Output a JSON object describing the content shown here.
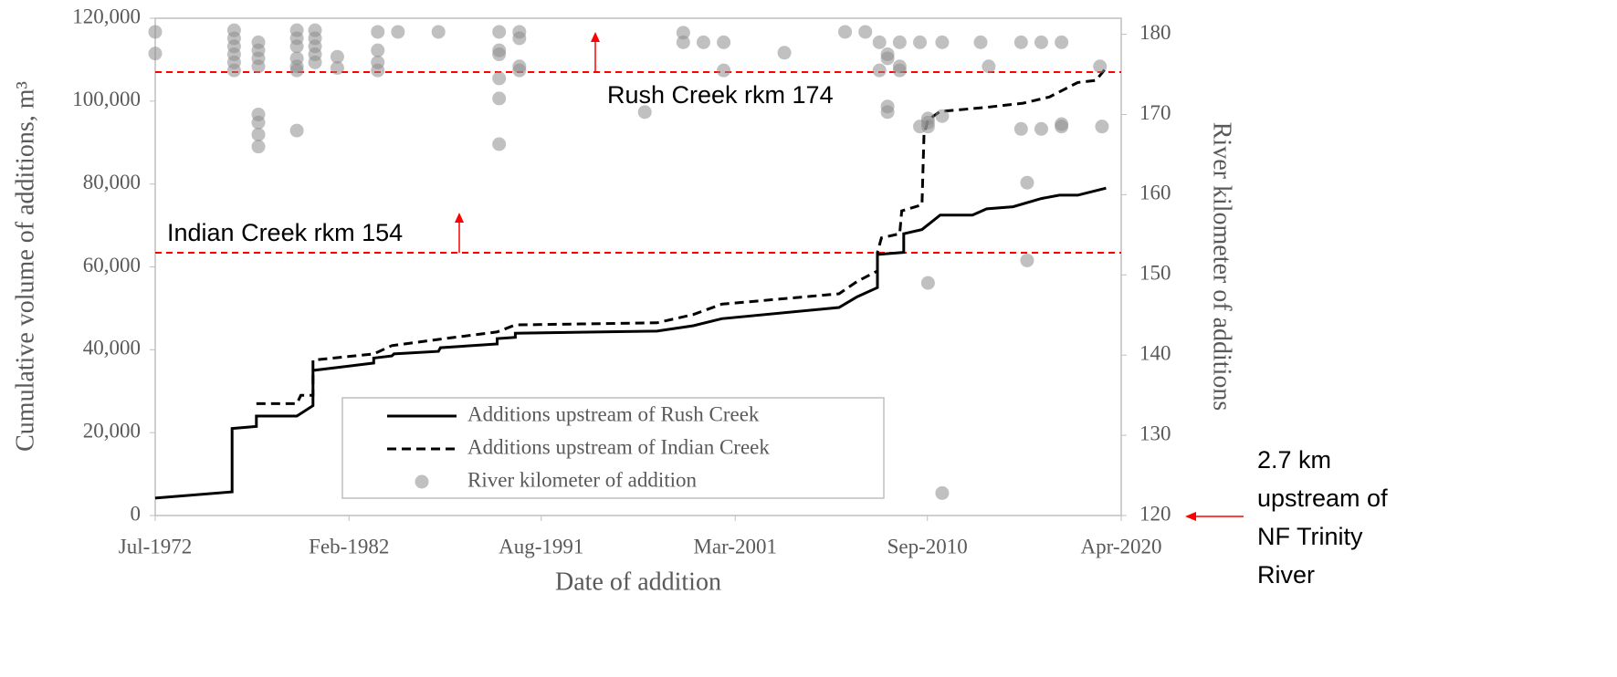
{
  "chart_data": {
    "type": "line",
    "x_label": "Date of addition",
    "y_label": "Cumulative volume of additions, m³",
    "y2_label": "River kilometer of additions",
    "xlim": [
      1972.5,
      2020.25
    ],
    "xticks": [
      {
        "value": 1972.5,
        "label": "Jul-1972"
      },
      {
        "value": 1982.08,
        "label": "Feb-1982"
      },
      {
        "value": 1991.58,
        "label": "Aug-1991"
      },
      {
        "value": 2001.17,
        "label": "Mar-2001"
      },
      {
        "value": 2010.67,
        "label": "Sep-2010"
      },
      {
        "value": 2020.25,
        "label": "Apr-2020"
      }
    ],
    "ylim": [
      0,
      120000
    ],
    "yticks": [
      0,
      {
        "value": 20000,
        "label": "20,000"
      },
      {
        "value": 40000,
        "label": "40,000"
      },
      {
        "value": 60000,
        "label": "60,000"
      },
      {
        "value": 80000,
        "label": "80,000"
      },
      {
        "value": 100000,
        "label": "100,000"
      },
      {
        "value": 120000,
        "label": "120,000"
      }
    ],
    "y2lim": [
      120,
      182
    ],
    "y2ticks": [
      120,
      130,
      140,
      150,
      160,
      170,
      180
    ],
    "series": [
      {
        "name": "Additions upstream of Rush Creek",
        "type": "line",
        "style": "solid",
        "color": "#000000",
        "x": [
          1972.5,
          1976.3,
          1976.3,
          1977.5,
          1977.5,
          1979.5,
          1980.3,
          1980.3,
          1983.3,
          1983.3,
          1984.2,
          1984.3,
          1986.5,
          1986.6,
          1989.4,
          1989.4,
          1990.3,
          1990.3,
          1997.3,
          1999.1,
          2000.5,
          2006.3,
          2007.2,
          2008.2,
          2008.2,
          2009.5,
          2009.5,
          2010.4,
          2011.3,
          2012.9,
          2013.6,
          2014.9,
          2016.3,
          2017.2,
          2018.1,
          2019.5
        ],
        "values": [
          4200,
          5700,
          21000,
          21500,
          24000,
          24000,
          26500,
          35000,
          36800,
          38000,
          38500,
          39000,
          39600,
          40500,
          41400,
          42700,
          43000,
          44000,
          44500,
          45800,
          47500,
          50200,
          52800,
          55000,
          63000,
          63500,
          68000,
          69000,
          72500,
          72500,
          74000,
          74500,
          76500,
          77300,
          77300,
          79000
        ]
      },
      {
        "name": "Additions upstream of Indian Creek",
        "type": "line",
        "style": "dashed",
        "color": "#000000",
        "x": [
          1977.5,
          1979.5,
          1979.7,
          1980.3,
          1980.3,
          1983.3,
          1984.2,
          1986.5,
          1989.4,
          1990.3,
          1997.3,
          1999.1,
          2000.5,
          2006.3,
          2007.2,
          2008.2,
          2008.2,
          2008.4,
          2009.3,
          2009.4,
          2010.4,
          2010.5,
          2010.7,
          2011.3,
          2013.6,
          2015.4,
          2016.7,
          2018.1,
          2019.0,
          2019.5
        ],
        "values": [
          27000,
          27000,
          29000,
          29000,
          37500,
          39000,
          41000,
          42500,
          44300,
          46000,
          46500,
          48500,
          51000,
          53500,
          56500,
          59000,
          63500,
          67000,
          68000,
          73500,
          75000,
          92000,
          95500,
          97500,
          98500,
          99500,
          101000,
          104500,
          105000,
          108000
        ]
      },
      {
        "name": "River kilometer of addition",
        "type": "scatter",
        "axis": "y2",
        "color": "#8c8c8c",
        "x": [
          1972.5,
          1972.5,
          1976.4,
          1976.4,
          1976.4,
          1976.4,
          1976.4,
          1976.4,
          1977.6,
          1977.6,
          1977.6,
          1977.6,
          1977.6,
          1977.6,
          1977.6,
          1977.6,
          1979.5,
          1979.5,
          1979.5,
          1979.5,
          1979.5,
          1979.5,
          1979.5,
          1980.4,
          1980.4,
          1980.4,
          1980.4,
          1980.4,
          1981.5,
          1981.5,
          1983.5,
          1983.5,
          1983.5,
          1983.5,
          1984.5,
          1986.5,
          1989.5,
          1989.5,
          1989.5,
          1989.5,
          1989.5,
          1989.5,
          1990.5,
          1990.5,
          1990.5,
          1990.5,
          1996.7,
          1998.6,
          1998.6,
          1999.6,
          2000.6,
          2000.6,
          2003.6,
          2006.6,
          2007.6,
          2008.3,
          2008.3,
          2008.7,
          2008.7,
          2008.7,
          2008.7,
          2009.3,
          2009.3,
          2009.3,
          2010.3,
          2010.3,
          2010.7,
          2010.7,
          2010.7,
          2010.7,
          2011.4,
          2011.4,
          2011.4,
          2013.3,
          2013.7,
          2015.3,
          2015.3,
          2015.6,
          2015.6,
          2016.3,
          2016.3,
          2017.3,
          2017.3,
          2017.3,
          2019.2,
          2019.3
        ],
        "values": [
          180.3,
          177.6,
          180.5,
          179.5,
          178.5,
          177.5,
          176.5,
          175.5,
          179,
          178,
          177,
          176,
          170,
          169,
          167.5,
          166,
          168,
          180.5,
          179.5,
          178.5,
          177,
          176,
          175.5,
          180.5,
          179.5,
          178.5,
          177.5,
          176.5,
          177.2,
          175.8,
          180.3,
          178,
          176.5,
          175.5,
          180.3,
          180.3,
          180.3,
          178,
          177.5,
          174.5,
          172,
          166.3,
          180.3,
          179.5,
          176,
          175.5,
          170.3,
          180.2,
          179,
          179,
          179,
          175.5,
          177.7,
          180.3,
          180.3,
          179,
          175.5,
          177.5,
          177,
          171,
          170.3,
          179,
          175.5,
          176,
          179,
          168.5,
          169.5,
          169,
          168.5,
          149,
          179,
          169.8,
          122.8,
          179,
          176,
          179,
          168.2,
          161.5,
          151.8,
          179,
          168.2,
          179,
          168.5,
          168.8,
          176,
          168.5
        ]
      }
    ],
    "legend": "bottom-center",
    "ref_lines": [
      {
        "label": "Rush Creek rkm 174",
        "value": 107000,
        "color": "#ff0000"
      },
      {
        "label": "Indian Creek rkm 154",
        "value": 63400,
        "color": "#ff0000"
      }
    ],
    "side_note": [
      "2.7 km",
      "upstream of",
      "NF Trinity",
      "River"
    ]
  }
}
